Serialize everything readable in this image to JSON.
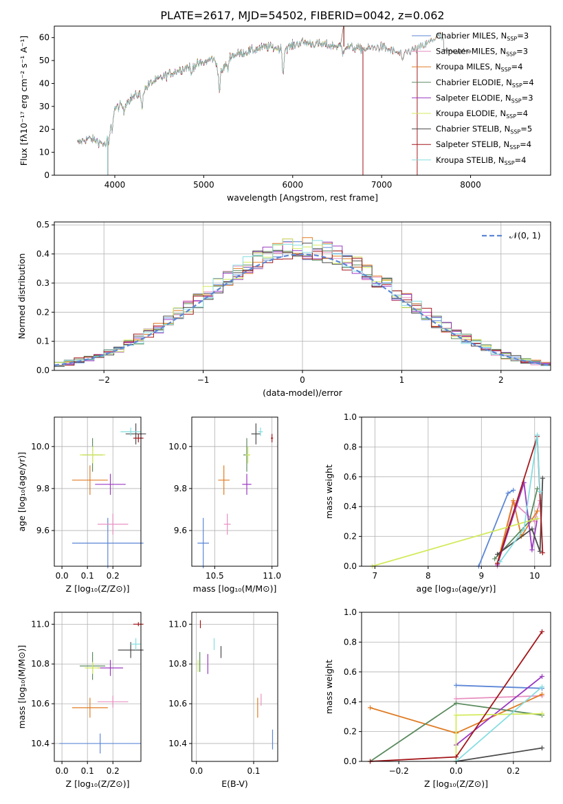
{
  "figure_title": "PLATE=2617, MJD=54502, FIBERID=0042, z=0.062",
  "colors": {
    "series": [
      "#5b86d6",
      "#e88fc0",
      "#e07b22",
      "#5a8a5e",
      "#9a37c0",
      "#d3ea5a",
      "#4a4a4a",
      "#a3161a",
      "#85dde0"
    ],
    "grid": "#b0b0b0",
    "gauss": "#5b86d6"
  },
  "chart_data": [
    {
      "id": "spectrum",
      "type": "line",
      "title": "PLATE=2617, MJD=54502, FIBERID=0042, z=0.062",
      "xlabel": "wavelength [Angstrom, rest frame]",
      "ylabel": "Flux [fλ10⁻¹⁷ erg cm⁻² s⁻¹ A⁻¹]",
      "xlim": [
        3320,
        8900
      ],
      "ylim": [
        0,
        65
      ],
      "xticks": [
        4000,
        5000,
        6000,
        7000,
        8000
      ],
      "yticks": [
        0,
        10,
        20,
        30,
        40,
        50,
        60
      ],
      "grid": false,
      "legend": "top-right",
      "continuum": {
        "x": [
          3580,
          3700,
          3800,
          3900,
          3950,
          4000,
          4100,
          4200,
          4300,
          4400,
          4600,
          4800,
          5000,
          5100,
          5200,
          5300,
          5500,
          5700,
          5900,
          6100,
          6300,
          6600,
          6800,
          7000,
          7200,
          7400,
          7500,
          7650,
          7700
        ],
        "y": [
          14,
          16,
          15,
          13,
          22,
          29,
          31,
          34,
          36,
          40,
          44,
          47,
          49,
          51,
          45,
          52,
          54,
          56,
          55,
          58,
          57,
          56,
          55,
          56,
          53,
          55,
          57,
          61,
          59
        ]
      },
      "absorption_dips": [
        {
          "x": 3934,
          "depth": 6
        },
        {
          "x": 3969,
          "depth": 5
        },
        {
          "x": 4102,
          "depth": 4
        },
        {
          "x": 4305,
          "depth": 7
        },
        {
          "x": 4861,
          "depth": 4
        },
        {
          "x": 5175,
          "depth": 10
        },
        {
          "x": 5270,
          "depth": 4
        },
        {
          "x": 5893,
          "depth": 11
        },
        {
          "x": 6563,
          "depth": 3
        },
        {
          "x": 7240,
          "depth": 5
        }
      ],
      "spikes": [
        {
          "x": 3920,
          "to": 0
        },
        {
          "x": 6790,
          "to": 0
        },
        {
          "x": 7400,
          "to": 0
        },
        {
          "x": 6575,
          "to": 66
        }
      ],
      "series": [
        {
          "name": "Chabrier MILES, N_SSP=3",
          "x_end": 7700
        },
        {
          "name": "Salpeter MILES, N_SSP=3",
          "x_end": 7700
        },
        {
          "name": "Kroupa MILES, N_SSP=4",
          "x_end": 7700
        },
        {
          "name": "Chabrier ELODIE, N_SSP=4",
          "x_end": 6790
        },
        {
          "name": "Salpeter ELODIE, N_SSP=3",
          "x_end": 6790
        },
        {
          "name": "Kroupa ELODIE, N_SSP=4",
          "x_end": 6790
        },
        {
          "name": "Chabrier STELIB, N_SSP=5",
          "x_end": 8010
        },
        {
          "name": "Salpeter STELIB, N_SSP=4",
          "x_end": 7400
        },
        {
          "name": "Kroupa STELIB, N_SSP=4",
          "x_end": 7700
        }
      ]
    },
    {
      "id": "residuals",
      "type": "histogram",
      "xlabel": "(data-model)/error",
      "ylabel": "Normed distribution",
      "xlim": [
        -2.5,
        2.5
      ],
      "ylim": [
        0,
        0.51
      ],
      "xticks": [
        -2,
        -1,
        0,
        1,
        2
      ],
      "yticks": [
        0.0,
        0.1,
        0.2,
        0.3,
        0.4,
        0.5
      ],
      "grid": true,
      "legend": "top-right",
      "bin_width": 0.1,
      "gauss_label": "𝒩(0, 1)"
    },
    {
      "id": "age_vs_Z",
      "type": "scatter",
      "xlabel": "Z [log₁₀(Z/Z⊙)]",
      "ylabel": "age  [log₁₀(age/yr)]",
      "xlim": [
        -0.03,
        0.31
      ],
      "ylim": [
        9.43,
        10.14
      ],
      "xticks": [
        0.0,
        0.1,
        0.2
      ],
      "yticks": [
        9.6,
        9.8,
        10.0
      ],
      "grid": true,
      "points": [
        {
          "x": 0.18,
          "xerr": 0.14,
          "y": 9.54,
          "yerr": 0.12
        },
        {
          "x": 0.2,
          "xerr": 0.06,
          "y": 9.63,
          "yerr": 0.05
        },
        {
          "x": 0.11,
          "xerr": 0.07,
          "y": 9.84,
          "yerr": 0.07
        },
        {
          "x": 0.12,
          "xerr": 0.04,
          "y": 9.96,
          "yerr": 0.08
        },
        {
          "x": 0.19,
          "xerr": 0.06,
          "y": 9.82,
          "yerr": 0.05
        },
        {
          "x": 0.12,
          "xerr": 0.05,
          "y": 9.96,
          "yerr": 0.04
        },
        {
          "x": 0.29,
          "xerr": 0.04,
          "y": 10.06,
          "yerr": 0.05
        },
        {
          "x": 0.3,
          "xerr": 0.02,
          "y": 10.04,
          "yerr": 0.02
        },
        {
          "x": 0.27,
          "xerr": 0.04,
          "y": 10.07,
          "yerr": 0.02
        }
      ]
    },
    {
      "id": "age_vs_mass",
      "type": "scatter",
      "xlabel": "mass [log₁₀(M/M⊙)]",
      "ylabel": "",
      "xlim": [
        10.3,
        11.05
      ],
      "ylim": [
        9.43,
        10.14
      ],
      "xticks": [
        10.5,
        11.0
      ],
      "yticks": [
        9.6,
        9.8,
        10.0
      ],
      "grid": true,
      "points": [
        {
          "x": 10.4,
          "xerr": 0.05,
          "y": 9.54,
          "yerr": 0.12
        },
        {
          "x": 10.61,
          "xerr": 0.03,
          "y": 9.63,
          "yerr": 0.05
        },
        {
          "x": 10.58,
          "xerr": 0.05,
          "y": 9.84,
          "yerr": 0.07
        },
        {
          "x": 10.78,
          "xerr": 0.03,
          "y": 9.96,
          "yerr": 0.08
        },
        {
          "x": 10.78,
          "xerr": 0.04,
          "y": 9.82,
          "yerr": 0.05
        },
        {
          "x": 10.79,
          "xerr": 0.02,
          "y": 9.96,
          "yerr": 0.04
        },
        {
          "x": 10.86,
          "xerr": 0.04,
          "y": 10.06,
          "yerr": 0.05
        },
        {
          "x": 11.0,
          "xerr": 0.01,
          "y": 10.04,
          "yerr": 0.02
        },
        {
          "x": 10.9,
          "xerr": 0.02,
          "y": 10.07,
          "yerr": 0.02
        }
      ]
    },
    {
      "id": "weight_vs_age",
      "type": "line",
      "xlabel": "age  [log₁₀(age/yr)]",
      "ylabel": "mass weight",
      "xlim": [
        6.75,
        10.3
      ],
      "ylim": [
        0,
        1.0
      ],
      "xticks": [
        7,
        8,
        9,
        10
      ],
      "yticks": [
        0.0,
        0.2,
        0.4,
        0.6,
        0.8,
        1.0
      ],
      "grid": true,
      "series": [
        {
          "x": [
            8.95,
            9.5,
            9.6
          ],
          "y": [
            0.0,
            0.49,
            0.51
          ]
        },
        {
          "x": [
            9.3,
            9.6,
            10.0,
            10.1
          ],
          "y": [
            0.0,
            0.43,
            0.3,
            0.44
          ]
        },
        {
          "x": [
            9.3,
            9.6,
            9.75,
            10.05
          ],
          "y": [
            0.02,
            0.44,
            0.2,
            0.37
          ]
        },
        {
          "x": [
            9.25,
            9.9,
            10.05
          ],
          "y": [
            0.05,
            0.3,
            0.52
          ]
        },
        {
          "x": [
            9.3,
            9.8,
            9.95,
            10.05
          ],
          "y": [
            0.01,
            0.56,
            0.11,
            0.32
          ]
        },
        {
          "x": [
            6.95,
            10.05
          ],
          "y": [
            0.0,
            0.32
          ]
        },
        {
          "x": [
            9.3,
            9.95,
            10.1,
            10.15
          ],
          "y": [
            0.08,
            0.25,
            0.1,
            0.59
          ]
        },
        {
          "x": [
            9.3,
            10.05,
            10.15
          ],
          "y": [
            0.02,
            0.87,
            0.09
          ]
        },
        {
          "x": [
            9.35,
            9.8,
            10.05,
            10.1
          ],
          "y": [
            0.03,
            0.25,
            0.88,
            0.5
          ]
        }
      ]
    },
    {
      "id": "mass_vs_Z",
      "type": "scatter",
      "xlabel": "Z [log₁₀(Z/Z⊙)]",
      "ylabel": "mass [log₁₀(M/M⊙)]",
      "xlim": [
        -0.03,
        0.31
      ],
      "ylim": [
        10.31,
        11.06
      ],
      "xticks": [
        0.0,
        0.1,
        0.2
      ],
      "yticks": [
        10.4,
        10.6,
        10.8,
        11.0
      ],
      "grid": true,
      "points": [
        {
          "x": 0.15,
          "xerr": 0.16,
          "y": 10.4,
          "yerr": 0.05
        },
        {
          "x": 0.2,
          "xerr": 0.06,
          "y": 10.61,
          "yerr": 0.03
        },
        {
          "x": 0.11,
          "xerr": 0.07,
          "y": 10.58,
          "yerr": 0.05
        },
        {
          "x": 0.12,
          "xerr": 0.05,
          "y": 10.79,
          "yerr": 0.07
        },
        {
          "x": 0.19,
          "xerr": 0.05,
          "y": 10.78,
          "yerr": 0.04
        },
        {
          "x": 0.12,
          "xerr": 0.03,
          "y": 10.78,
          "yerr": 0.03
        },
        {
          "x": 0.27,
          "xerr": 0.05,
          "y": 10.87,
          "yerr": 0.04
        },
        {
          "x": 0.3,
          "xerr": 0.02,
          "y": 11.0,
          "yerr": 0.01
        },
        {
          "x": 0.29,
          "xerr": 0.02,
          "y": 10.9,
          "yerr": 0.03
        }
      ]
    },
    {
      "id": "mass_vs_ebv",
      "type": "scatter",
      "xlabel": "E(B-V)",
      "ylabel": "",
      "xlim": [
        -0.008,
        0.142
      ],
      "ylim": [
        10.31,
        11.06
      ],
      "xticks": [
        0.0,
        0.1
      ],
      "yticks": [
        10.4,
        10.6,
        10.8,
        11.0
      ],
      "grid": true,
      "points": [
        {
          "x": 0.133,
          "y": 10.42,
          "yerr": 0.05
        },
        {
          "x": 0.113,
          "y": 10.62,
          "yerr": 0.03
        },
        {
          "x": 0.107,
          "y": 10.58,
          "yerr": 0.05
        },
        {
          "x": 0.006,
          "y": 10.81,
          "yerr": 0.05
        },
        {
          "x": 0.02,
          "y": 10.8,
          "yerr": 0.05
        },
        {
          "x": 0.003,
          "y": 10.79,
          "yerr": 0.03
        },
        {
          "x": 0.043,
          "y": 10.86,
          "yerr": 0.03
        },
        {
          "x": 0.007,
          "y": 11.0,
          "yerr": 0.02
        },
        {
          "x": 0.031,
          "y": 10.9,
          "yerr": 0.03
        }
      ]
    },
    {
      "id": "weight_vs_Z",
      "type": "line",
      "xlabel": "Z [log₁₀(Z/Z⊙)]",
      "ylabel": "mass weight",
      "xlim": [
        -0.33,
        0.33
      ],
      "ylim": [
        0,
        1.0
      ],
      "xticks": [
        -0.2,
        0.0,
        0.2
      ],
      "yticks": [
        0.0,
        0.2,
        0.4,
        0.6,
        0.8,
        1.0
      ],
      "grid": true,
      "series": [
        {
          "x": [
            0.0,
            0.3
          ],
          "y": [
            0.51,
            0.49
          ]
        },
        {
          "x": [
            0.0,
            0.3
          ],
          "y": [
            0.42,
            0.44
          ]
        },
        {
          "x": [
            -0.3,
            0.0,
            0.3
          ],
          "y": [
            0.36,
            0.19,
            0.45
          ]
        },
        {
          "x": [
            -0.3,
            0.0,
            0.3
          ],
          "y": [
            0.0,
            0.39,
            0.31
          ]
        },
        {
          "x": [
            0.0,
            0.3
          ],
          "y": [
            0.11,
            0.57
          ]
        },
        {
          "x": [
            0.0,
            0.0,
            0.3
          ],
          "y": [
            0.0,
            0.31,
            0.32
          ]
        },
        {
          "x": [
            0.0,
            0.3
          ],
          "y": [
            0.0,
            0.09
          ]
        },
        {
          "x": [
            -0.3,
            0.0,
            0.3
          ],
          "y": [
            0.0,
            0.03,
            0.87
          ]
        },
        {
          "x": [
            0.0,
            0.3
          ],
          "y": [
            0.0,
            0.5
          ]
        }
      ]
    }
  ]
}
